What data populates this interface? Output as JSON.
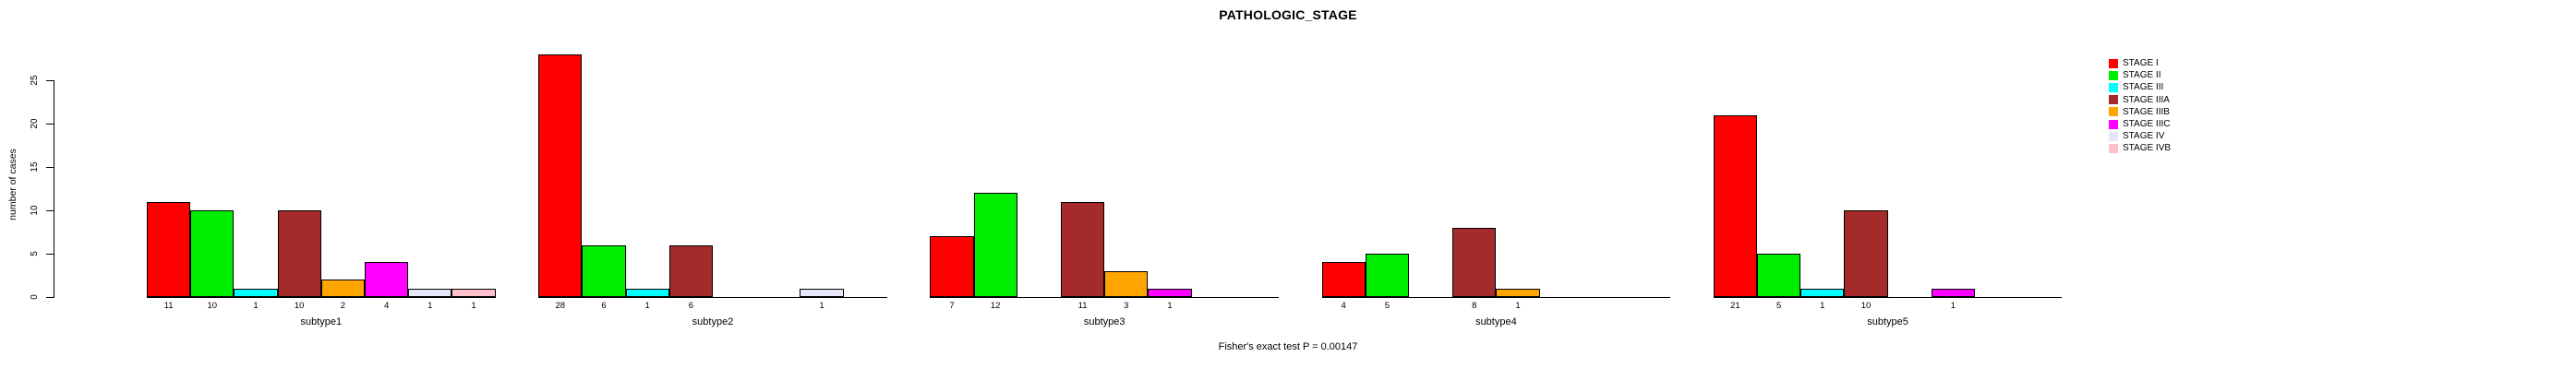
{
  "chart_data": {
    "type": "bar",
    "title": "PATHOLOGIC_STAGE",
    "ylabel": "number of cases",
    "xlabel": "",
    "footnote": "Fisher's exact test P = 0.00147",
    "categories": [
      "subtype1",
      "subtype2",
      "subtype3",
      "subtype4",
      "subtype5"
    ],
    "series": [
      {
        "name": "STAGE I",
        "color": "#FF0000",
        "values": [
          11,
          28,
          7,
          4,
          21
        ]
      },
      {
        "name": "STAGE II",
        "color": "#00EE00",
        "values": [
          10,
          6,
          12,
          5,
          5
        ]
      },
      {
        "name": "STAGE III",
        "color": "#00FFFF",
        "values": [
          1,
          1,
          0,
          0,
          1
        ]
      },
      {
        "name": "STAGE IIIA",
        "color": "#A52A2A",
        "values": [
          10,
          6,
          11,
          8,
          10
        ]
      },
      {
        "name": "STAGE IIIB",
        "color": "#FFA500",
        "values": [
          2,
          0,
          3,
          1,
          0
        ]
      },
      {
        "name": "STAGE IIIC",
        "color": "#FF00FF",
        "values": [
          4,
          0,
          1,
          0,
          1
        ]
      },
      {
        "name": "STAGE IV",
        "color": "#E6E6FA",
        "values": [
          1,
          1,
          0,
          0,
          0
        ]
      },
      {
        "name": "STAGE IVB",
        "color": "#FFC0CB",
        "values": [
          1,
          0,
          0,
          0,
          0
        ]
      }
    ],
    "ylim": [
      0,
      25
    ],
    "yticks": [
      0,
      5,
      10,
      15,
      20,
      25
    ],
    "grid": false,
    "legend_position": "right",
    "bar_labels": "value shown under each nonzero bar",
    "axis_color": "#000000",
    "bar_border_color": "#000000"
  }
}
